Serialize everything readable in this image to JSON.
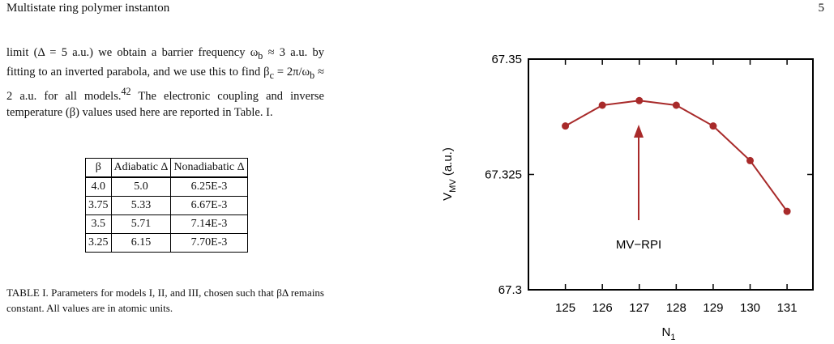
{
  "header": {
    "title": "Multistate ring polymer instanton",
    "page": "5"
  },
  "paragraph": [
    "limit (Δ = 5 a.u.) we obtain a barrier frequency ω",
    "b",
    " ≈ 3 a.u. by fitting to an inverted parabola, and we use this to find β",
    "c",
    " = 2π/ω",
    "b",
    " ≈ 2 a.u. for all models.",
    "42",
    " The electronic coupling and inverse temperature (β) values used here are reported in Table. I."
  ],
  "table": {
    "header": [
      "β",
      "Adiabatic Δ",
      "Nonadiabatic Δ"
    ],
    "rows": [
      [
        "4.0",
        "5.0",
        "6.25E-3"
      ],
      [
        "3.75",
        "5.33",
        "6.67E-3"
      ],
      [
        "3.5",
        "5.71",
        "7.14E-3"
      ],
      [
        "3.25",
        "6.15",
        "7.70E-3"
      ]
    ],
    "caption": "TABLE I. Parameters for models I, II, and III, chosen such that βΔ remains constant. All values are in atomic units."
  },
  "chart_data": {
    "type": "line",
    "x": [
      125,
      126,
      127,
      128,
      129,
      130,
      131
    ],
    "values": [
      67.3355,
      67.34,
      67.341,
      67.34,
      67.3355,
      67.328,
      67.317
    ],
    "color": "#a82a2a",
    "xlim": [
      124,
      131.7
    ],
    "xticks": [
      125,
      126,
      127,
      128,
      129,
      130,
      131
    ],
    "ylim": [
      67.3,
      67.35
    ],
    "yticks": [
      67.3,
      67.325,
      67.35
    ],
    "xlabel": {
      "main": "N",
      "sub": "1"
    },
    "ylabel": {
      "main": "V",
      "sub": "MV",
      "unit": " (a.u.)"
    },
    "annotation": "MV−RPI"
  }
}
